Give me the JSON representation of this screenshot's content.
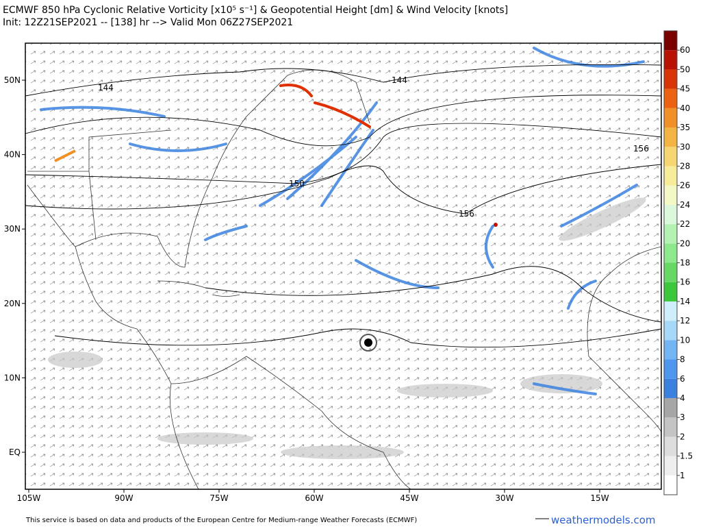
{
  "header": {
    "title": "ECMWF 850 hPa Cyclonic Relative Vorticity [x10⁵ s⁻¹] & Geopotential Height [dm] & Wind Velocity [knots]",
    "subtitle": "Init: 12Z21SEP2021 -- [138] hr --> Valid Mon 06Z27SEP2021"
  },
  "map": {
    "lon_labels": [
      "105W",
      "90W",
      "75W",
      "60W",
      "45W",
      "30W",
      "15W"
    ],
    "lat_labels": [
      "50N",
      "40N",
      "30N",
      "20N",
      "10N",
      "EQ"
    ],
    "contour_labels": [
      "144",
      "144",
      "150",
      "156",
      "156"
    ]
  },
  "colorbar": {
    "levels": [
      1,
      1.5,
      2,
      3,
      4,
      6,
      8,
      10,
      12,
      14,
      16,
      18,
      20,
      22,
      24,
      26,
      28,
      30,
      35,
      40,
      45,
      50,
      60
    ],
    "colors": [
      "#ffffff",
      "#eeeeee",
      "#dddddd",
      "#c4c4c4",
      "#a6a6a6",
      "#3b82e0",
      "#4f96ee",
      "#72b4f4",
      "#a6d8f8",
      "#cfeefc",
      "#3cc83c",
      "#66d866",
      "#8ee88e",
      "#b4f2b4",
      "#dcf8dc",
      "#f4f8c4",
      "#f6ec9a",
      "#f6d670",
      "#f4b444",
      "#f09026",
      "#ec6212",
      "#d83406",
      "#b81204",
      "#7a0000"
    ]
  },
  "footer": {
    "credit": "This service is based on data and products of the European Centre for Medium-range Weather Forecasts (ECMWF)",
    "site": "weathermodels.com"
  }
}
